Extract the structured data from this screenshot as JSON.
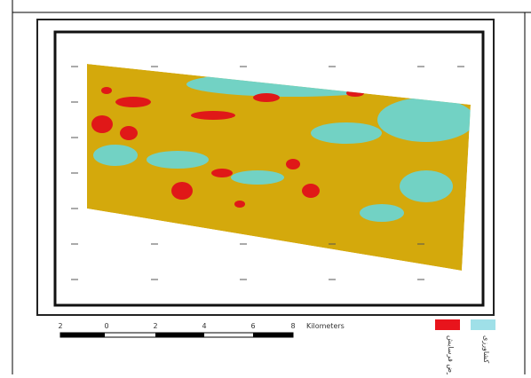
{
  "map": {
    "scale_bar": {
      "labels": [
        "2",
        "0",
        "2",
        "4",
        "6",
        "8"
      ],
      "unit": "Kilometers"
    },
    "legend": [
      {
        "label": "کشاورزی",
        "color": "#9fe0e8"
      },
      {
        "label": "در معرض فرسایش",
        "color": "#e8141c"
      }
    ]
  }
}
